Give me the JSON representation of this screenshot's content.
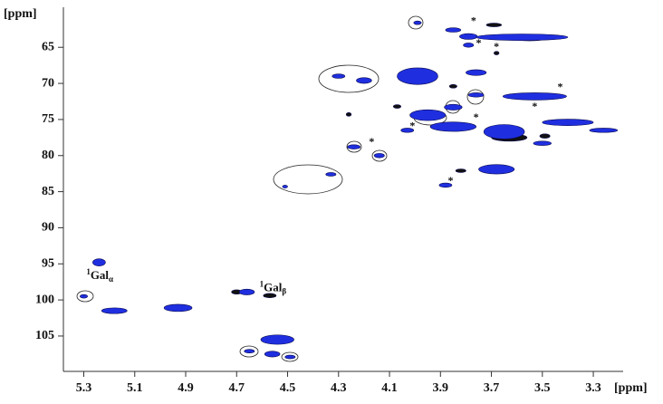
{
  "chart_data": {
    "type": "scatter",
    "x_label": "[ppm]",
    "y_label": "[ppm]",
    "xlim": [
      5.38,
      3.19
    ],
    "ylim": [
      59.7,
      109.9
    ],
    "xticks": [
      5.3,
      5.1,
      4.9,
      4.7,
      4.5,
      4.3,
      4.1,
      3.9,
      3.7,
      3.5,
      3.3
    ],
    "yticks": [
      65,
      70,
      75,
      80,
      85,
      90,
      95,
      100,
      105
    ],
    "series": [
      {
        "color": "#111111",
        "x": [
          3.55,
          3.69,
          3.68,
          4.57,
          4.7,
          4.26,
          4.07,
          3.82,
          3.49,
          3.63,
          3.85
        ],
        "y": [
          63.7,
          61.9,
          65.8,
          99.4,
          98.9,
          74.3,
          73.2,
          82.1,
          77.3,
          77.5,
          70.4
        ],
        "w": [
          0.14,
          0.06,
          0.02,
          0.05,
          0.04,
          0.02,
          0.03,
          0.04,
          0.04,
          0.14,
          0.03
        ],
        "h": [
          0.8,
          0.5,
          0.5,
          0.6,
          0.6,
          0.5,
          0.5,
          0.5,
          0.6,
          1.0,
          0.5
        ]
      },
      {
        "color": "#1f2fe0",
        "x": [
          5.24,
          5.3,
          5.18,
          4.93,
          4.66,
          4.54,
          4.56,
          4.65,
          4.49,
          3.99,
          3.85,
          3.79,
          3.58,
          3.79,
          4.3,
          4.2,
          3.99,
          3.76,
          3.53,
          3.95,
          3.85,
          3.65,
          3.4,
          3.26,
          4.24,
          4.14,
          3.68,
          3.5,
          3.88,
          4.33,
          4.51,
          4.03,
          3.85,
          3.76
        ],
        "y": [
          94.8,
          99.5,
          101.5,
          101.1,
          98.9,
          105.5,
          107.5,
          107.1,
          107.9,
          61.6,
          62.6,
          63.5,
          63.6,
          64.7,
          69.0,
          69.6,
          69.0,
          68.5,
          71.8,
          74.4,
          76.0,
          76.7,
          75.4,
          76.5,
          78.8,
          80.0,
          81.9,
          78.3,
          84.1,
          82.6,
          84.3,
          76.5,
          73.3,
          71.6
        ],
        "w": [
          0.05,
          0.03,
          0.1,
          0.11,
          0.06,
          0.13,
          0.06,
          0.04,
          0.04,
          0.03,
          0.06,
          0.07,
          0.36,
          0.04,
          0.05,
          0.06,
          0.16,
          0.08,
          0.25,
          0.14,
          0.18,
          0.16,
          0.2,
          0.11,
          0.05,
          0.04,
          0.14,
          0.07,
          0.05,
          0.04,
          0.02,
          0.05,
          0.07,
          0.06
        ],
        "h": [
          1.0,
          0.5,
          0.8,
          1.0,
          0.8,
          1.3,
          0.8,
          0.5,
          0.5,
          0.5,
          0.6,
          0.8,
          0.9,
          0.6,
          0.6,
          0.8,
          2.3,
          0.8,
          1.0,
          1.5,
          1.3,
          2.0,
          0.9,
          0.6,
          0.6,
          0.6,
          1.3,
          0.6,
          0.6,
          0.5,
          0.4,
          0.6,
          0.8,
          0.6
        ]
      }
    ],
    "annotations": [
      {
        "text": "*",
        "x": 3.77,
        "y": 61.4
      },
      {
        "text": "*",
        "x": 3.75,
        "y": 64.5
      },
      {
        "text": "*",
        "x": 3.68,
        "y": 65.0
      },
      {
        "text": "*",
        "x": 3.43,
        "y": 70.6
      },
      {
        "text": "*",
        "x": 3.53,
        "y": 73.3
      },
      {
        "text": "*",
        "x": 3.76,
        "y": 74.8
      },
      {
        "text": "*",
        "x": 4.01,
        "y": 76.0
      },
      {
        "text": "*",
        "x": 4.17,
        "y": 78.2
      },
      {
        "text": "*",
        "x": 3.86,
        "y": 83.6
      }
    ],
    "labels": [
      {
        "sup": "1",
        "text": "Gal",
        "sub": "α",
        "x": 5.29,
        "y": 96.7
      },
      {
        "sup": "1",
        "text": "Gal",
        "sub": "β",
        "x": 4.61,
        "y": 98.4
      }
    ]
  }
}
